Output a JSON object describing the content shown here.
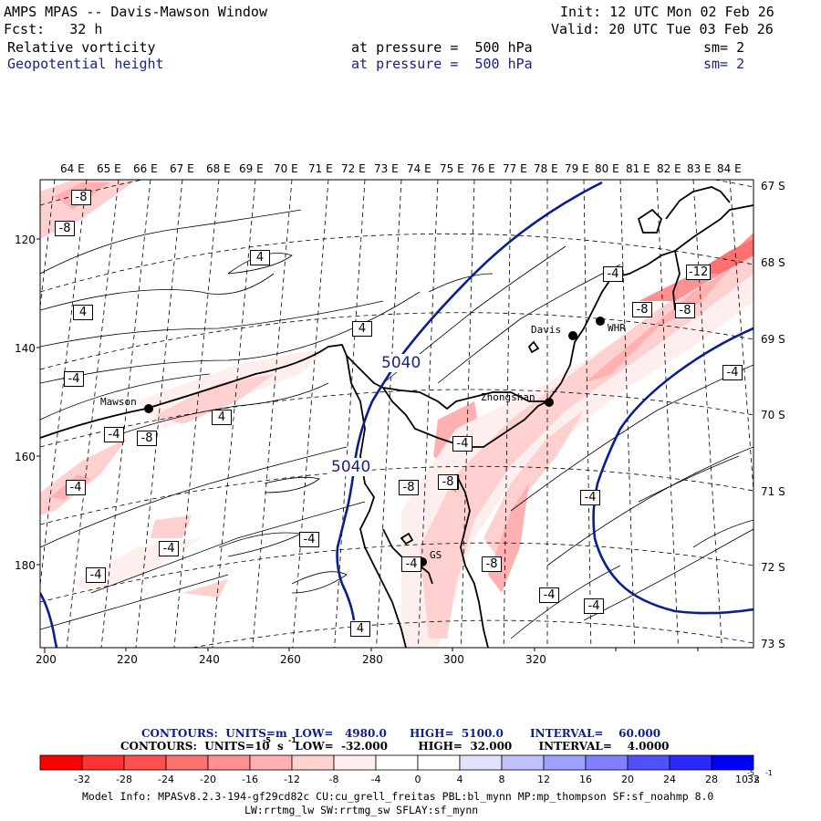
{
  "header": {
    "title": "AMPS MPAS -- Davis-Mawson Window",
    "init": "Init: 12 UTC Mon 02 Feb 26",
    "forecast_label": "Fcst:   32 h",
    "valid": "Valid: 20 UTC Tue 03 Feb 26",
    "field1_name": "Relative vorticity",
    "field1_level": "at pressure =  500 hPa",
    "field1_smooth": "sm= 2",
    "field2_name": "Geopotential height",
    "field2_level": "at pressure =  500 hPa",
    "field2_smooth": "sm= 2"
  },
  "colors": {
    "height_contour": "#0a1f8f",
    "coastline": "#000000",
    "negative_vorticity": "#ff0000",
    "positive_vorticity": "#0000ff"
  },
  "axes": {
    "top_lon_labels": [
      "64 E",
      "65 E",
      "66 E",
      "67 E",
      "68 E",
      "69 E",
      "70 E",
      "71 E",
      "72 E",
      "73 E",
      "74 E",
      "75 E",
      "76 E",
      "77 E",
      "78 E",
      "79 E",
      "80 E",
      "81 E",
      "82 E",
      "83 E",
      "84 E"
    ],
    "right_lat_labels": [
      "67 S",
      "68 S",
      "69 S",
      "70 S",
      "71 S",
      "72 S",
      "73 S"
    ],
    "bottom_x_labels": [
      "200",
      "220",
      "240",
      "260",
      "280",
      "300",
      "320"
    ],
    "left_y_labels": [
      "120",
      "140",
      "160",
      "180"
    ]
  },
  "stations": [
    {
      "name": "Mawson"
    },
    {
      "name": "Davis"
    },
    {
      "name": "WHR"
    },
    {
      "name": "Zhongshan"
    },
    {
      "name": "GS"
    }
  ],
  "height_labels": [
    "5040",
    "5040"
  ],
  "vorticity_labels": [
    "-8",
    "-8",
    "4",
    "-4",
    "4",
    "4",
    "-4",
    "4",
    "-4",
    "-8",
    "-4",
    "-4",
    "-8",
    "-4",
    "-4",
    "-12",
    "-4",
    "-8",
    "-8",
    "-4",
    "-8",
    "-8",
    "-4",
    "4",
    "-4",
    "-4",
    "-4",
    "-4"
  ],
  "legend": {
    "contours_height": "CONTOURS:  UNITS=m  LOW=   4980.0      HIGH=  5100.0       INTERVAL=    60.000",
    "contours_vort": "CONTOURS:  UNITS=10  s   LOW=  -32.000        HIGH=  32.000       INTERVAL=    4.0000",
    "colorbar_ticks": [
      "-32",
      "-28",
      "-24",
      "-20",
      "-16",
      "-12",
      "-8",
      "-4",
      "0",
      "4",
      "8",
      "12",
      "16",
      "20",
      "24",
      "28",
      "32"
    ],
    "colorbar_colors": [
      "#ff0000",
      "#ff3333",
      "#ff5050",
      "#ff7070",
      "#ff9090",
      "#ffb0b0",
      "#ffd0d0",
      "#ffeeee",
      "#ffffff",
      "#ffffff",
      "#e0e0ff",
      "#c0c0ff",
      "#a0a0ff",
      "#8080ff",
      "#5050ff",
      "#2a2aff",
      "#0000ff"
    ],
    "colorbar_units": "10  s",
    "exp_neg5": "-5",
    "exp_neg1": "-1"
  },
  "model_info": {
    "line1": "Model Info: MPASv8.2.3-194-gf29cd82c CU:cu_grell_freitas PBL:bl_mynn MP:mp_thompson SF:sf_noahmp 8.0",
    "line2": "LW:rrtmg_lw SW:rrtmg_sw SFLAY:sf_mynn"
  }
}
